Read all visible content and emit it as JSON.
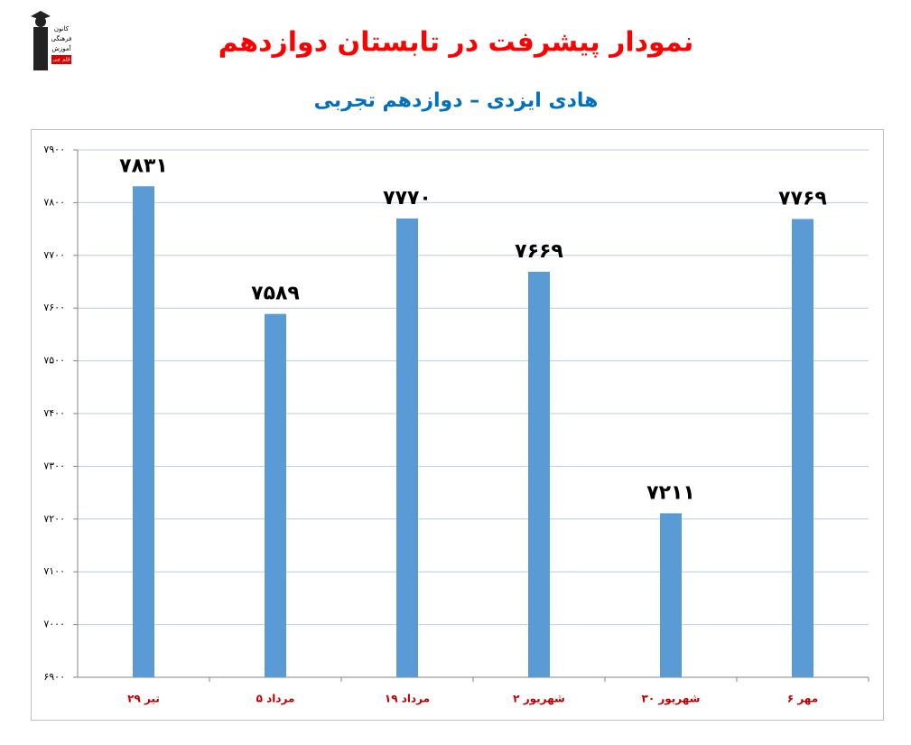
{
  "logo": {
    "lines": [
      "کانون",
      "فرهنگی",
      "آموزش",
      "قلم چی"
    ]
  },
  "chart_data": {
    "type": "bar",
    "title": "نمودار پیشرفت در تابستان دوازدهم",
    "subtitle": "هادی ایزدی – دوازدهم تجربی",
    "categories": [
      "۲۹ تیر",
      "۵ مرداد",
      "۱۹ مرداد",
      "۲ شهریور",
      "۳۰ شهریور",
      "۶ مهر"
    ],
    "values": [
      7831,
      7589,
      7770,
      7669,
      7211,
      7769
    ],
    "value_labels": [
      "۷۸۳۱",
      "۷۵۸۹",
      "۷۷۷۰",
      "۷۶۶۹",
      "۷۲۱۱",
      "۷۷۶۹"
    ],
    "color": "#5b9bd5",
    "ylim": [
      6900,
      7900
    ],
    "yticks": [
      {
        "value": 6900,
        "label": "۶۹۰۰"
      },
      {
        "value": 7000,
        "label": "۷۰۰۰"
      },
      {
        "value": 7100,
        "label": "۷۱۰۰"
      },
      {
        "value": 7200,
        "label": "۷۲۰۰"
      },
      {
        "value": 7300,
        "label": "۷۳۰۰"
      },
      {
        "value": 7400,
        "label": "۷۴۰۰"
      },
      {
        "value": 7500,
        "label": "۷۵۰۰"
      },
      {
        "value": 7600,
        "label": "۷۶۰۰"
      },
      {
        "value": 7700,
        "label": "۷۷۰۰"
      },
      {
        "value": 7800,
        "label": "۷۸۰۰"
      },
      {
        "value": 7900,
        "label": "۷۹۰۰"
      }
    ],
    "grid": true
  }
}
